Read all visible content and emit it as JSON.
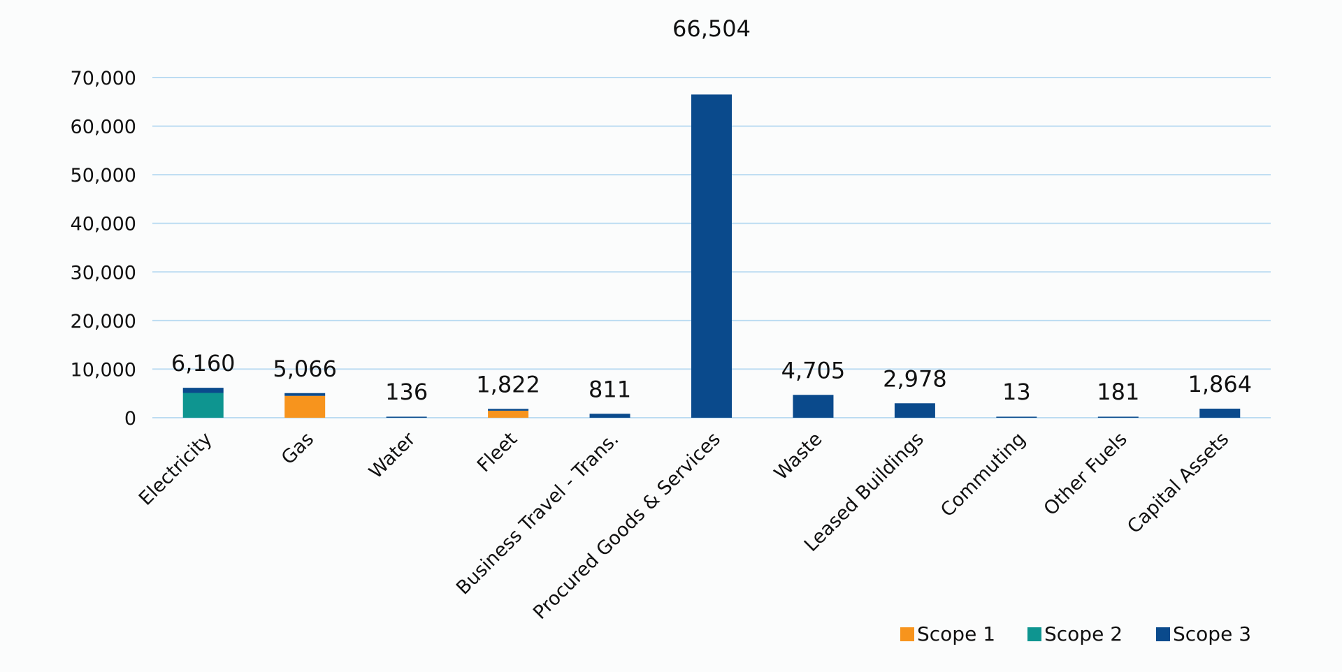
{
  "chart_data": {
    "type": "bar",
    "stacked": true,
    "categories": [
      "Electricity",
      "Gas",
      "Water",
      "Fleet",
      "Business Travel - Trans.",
      "Procured Goods & Services",
      "Waste",
      "Leased Buildings",
      "Commuting",
      "Other Fuels",
      "Capital Assets"
    ],
    "series": [
      {
        "name": "Scope 1",
        "color": "#f7941d",
        "values": [
          0,
          4500,
          0,
          1450,
          0,
          0,
          0,
          0,
          0,
          0,
          0
        ]
      },
      {
        "name": "Scope 2",
        "color": "#0e9590",
        "values": [
          5100,
          0,
          0,
          0,
          0,
          0,
          0,
          0,
          0,
          0,
          0
        ]
      },
      {
        "name": "Scope 3",
        "color": "#0a4a8c",
        "values": [
          1060,
          566,
          136,
          372,
          811,
          66504,
          4705,
          2978,
          13,
          181,
          1864
        ]
      }
    ],
    "totals": [
      6160,
      5066,
      136,
      1822,
      811,
      66504,
      4705,
      2978,
      13,
      181,
      1864
    ],
    "total_labels": [
      "6,160",
      "5,066",
      "136",
      "1,822",
      "811",
      "66,504",
      "4,705",
      "2,978",
      "13",
      "181",
      "1,864"
    ],
    "yticks": [
      0,
      10000,
      20000,
      30000,
      40000,
      50000,
      60000,
      70000
    ],
    "ytick_labels": [
      "0",
      "10,000",
      "20,000",
      "30,000",
      "40,000",
      "50,000",
      "60,000",
      "70,000"
    ],
    "ylim": [
      0,
      70000
    ],
    "grid": true,
    "legend_position": "bottom-right",
    "title": "",
    "xlabel": "",
    "ylabel": ""
  }
}
